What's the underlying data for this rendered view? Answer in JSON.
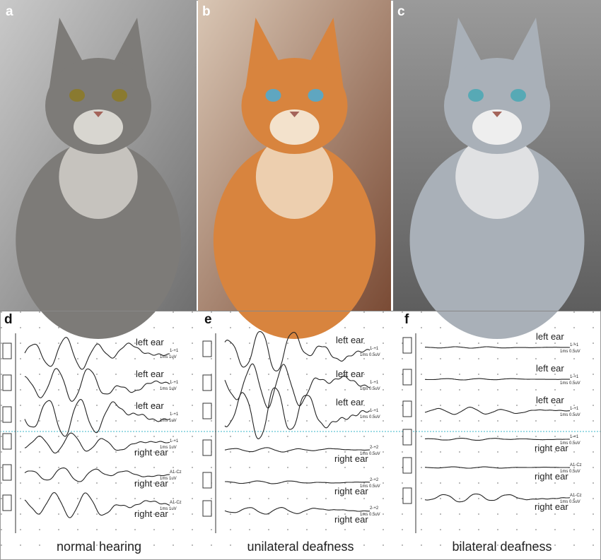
{
  "photos": [
    {
      "label": "a"
    },
    {
      "label": "b"
    },
    {
      "label": "c"
    }
  ],
  "panels": [
    {
      "label": "d",
      "caption": "normal hearing",
      "traces": [
        {
          "ear": "left ear",
          "channel": "1-+1",
          "scale": "1ms 1uV"
        },
        {
          "ear": "left ear",
          "channel": "1-+1",
          "scale": "1ms 1uV"
        },
        {
          "ear": "left ear",
          "channel": "1-+1",
          "scale": "1ms 1uV"
        },
        {
          "ear": "right ear",
          "channel": "1-+1",
          "scale": "1ms 1uV"
        },
        {
          "ear": "right ear",
          "channel": "A1-Cz",
          "scale": "1ms 1uV"
        },
        {
          "ear": "right ear",
          "channel": "A1-Cz",
          "scale": "1ms 1uV"
        }
      ]
    },
    {
      "label": "e",
      "caption": "unilateral deafness",
      "traces": [
        {
          "ear": "left ear",
          "channel": "1-+1",
          "scale": "1ms 0.5uV"
        },
        {
          "ear": "left ear",
          "channel": "1-+1",
          "scale": "1ms 0.5uV"
        },
        {
          "ear": "left ear",
          "channel": "1-+1",
          "scale": "1ms 0.5uV"
        },
        {
          "ear": "right ear",
          "channel": "2-+2",
          "scale": "1ms 0.5uV"
        },
        {
          "ear": "right ear",
          "channel": "2-+2",
          "scale": "1ms 0.5uV"
        },
        {
          "ear": "right ear",
          "channel": "2-+2",
          "scale": "1ms 0.5uV"
        }
      ]
    },
    {
      "label": "f",
      "caption": "bilateral deafness",
      "traces": [
        {
          "ear": "left ear",
          "channel": "1-+1",
          "scale": "1ms 0.5uV"
        },
        {
          "ear": "left ear",
          "channel": "1-+1",
          "scale": "1ms 0.5uV"
        },
        {
          "ear": "left ear",
          "channel": "1-+1",
          "scale": "1ms 0.5uV"
        },
        {
          "ear": "right ear",
          "channel": "1-+1",
          "scale": "1ms 0.5uV"
        },
        {
          "ear": "right ear",
          "channel": "A1-Cz",
          "scale": "1ms 0.5uV"
        },
        {
          "ear": "right ear",
          "channel": "A1-Cz",
          "scale": "1ms 0.5uV"
        }
      ]
    }
  ]
}
